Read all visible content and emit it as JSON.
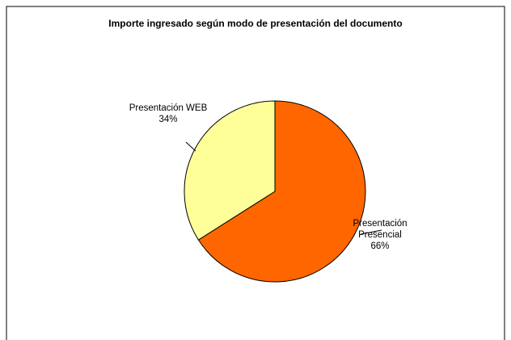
{
  "chart_data": {
    "type": "pie",
    "title": "Importe ingresado según modo de presentación del documento",
    "categories": [
      "Presentación Presencial",
      "Presentación WEB"
    ],
    "values": [
      66,
      34
    ],
    "value_labels": [
      "66%",
      "34%"
    ],
    "colors": [
      "#ff6600",
      "#ffff99"
    ]
  }
}
